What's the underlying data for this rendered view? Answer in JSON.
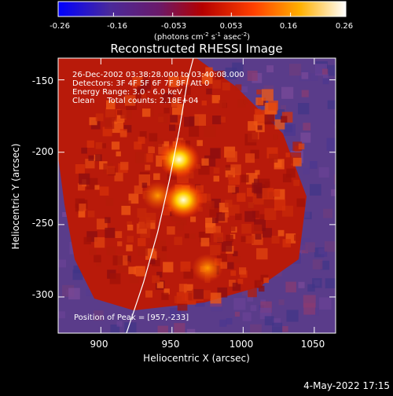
{
  "colorbar": {
    "ticks": [
      "-0.26",
      "-0.16",
      "-0.053",
      "0.053",
      "0.16",
      "0.26"
    ],
    "tick_values": [
      -0.26,
      -0.16,
      -0.053,
      0.053,
      0.16,
      0.26
    ],
    "range": [
      -0.26,
      0.26
    ],
    "units_main": "(photons cm",
    "units_exp1": "-2",
    "units_mid": " s",
    "units_exp2": "-1",
    "units_tail": " asec",
    "units_exp3": "-2",
    "units_close": ")"
  },
  "chart_data": {
    "type": "heatmap",
    "title": "Reconstructed RHESSI Image",
    "xlabel": "Heliocentric X (arcsec)",
    "ylabel": "Heliocentric Y (arcsec)",
    "xlim": [
      870,
      1065
    ],
    "ylim": [
      -325,
      -135
    ],
    "x_ticks": [
      900,
      950,
      1000,
      1050
    ],
    "y_ticks": [
      -150,
      -200,
      -250,
      -300
    ],
    "colormap": "blue-purple-red-yellow-white",
    "peak": [
      957,
      -233
    ],
    "sources": [
      {
        "x": 955,
        "y": -205,
        "value": 0.24
      },
      {
        "x": 958,
        "y": -233,
        "value": 0.26
      },
      {
        "x": 940,
        "y": -230,
        "value": 0.12
      },
      {
        "x": 975,
        "y": -280,
        "value": 0.13
      }
    ],
    "annotations": [
      "26-Dec-2002 03:38:28.000 to 03:40:08.000",
      "Detectors: 3F 4F 5F 6F 7F 8F, Att 0",
      "Energy Range: 3.0 - 6.0 keV",
      "Clean     Total counts: 2.18E+04",
      "Position of Peak = [957,-233]"
    ],
    "limb_curve": [
      [
        918,
        -325
      ],
      [
        930,
        -290
      ],
      [
        940,
        -255
      ],
      [
        948,
        -220
      ],
      [
        955,
        -185
      ],
      [
        961,
        -150
      ],
      [
        965,
        -135
      ]
    ]
  },
  "footer": {
    "date": "4-May-2022 17:15"
  }
}
